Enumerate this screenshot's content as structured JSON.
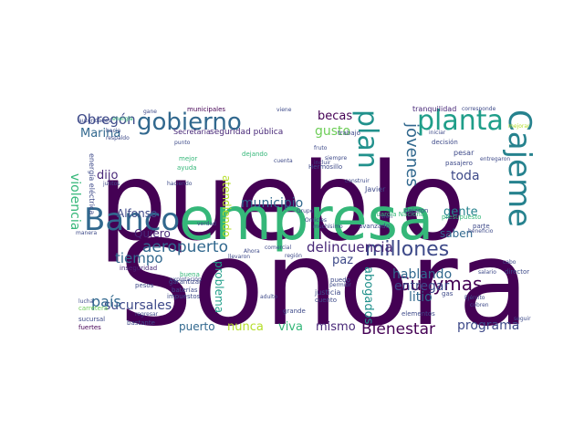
{
  "words": [
    {
      "text": "pueblo",
      "color": "#440154"
    },
    {
      "text": "Sonora",
      "color": "#440154"
    },
    {
      "text": "empresa",
      "color": "#35b779"
    },
    {
      "text": "gobierno",
      "color": "#31688e"
    },
    {
      "text": "Banco",
      "color": "#31688e"
    },
    {
      "text": "planta",
      "color": "#1f9e89"
    },
    {
      "text": "Cajeme",
      "color": "#26828e"
    },
    {
      "text": "plan",
      "color": "#21918c"
    },
    {
      "text": "millones",
      "color": "#3e4a89"
    },
    {
      "text": "delincuencia",
      "color": "#482878"
    },
    {
      "text": "aeropuerto",
      "color": "#31688e"
    },
    {
      "text": "Guaymas",
      "color": "#440154"
    },
    {
      "text": "jóvenes",
      "color": "#31688e"
    },
    {
      "text": "Obregón",
      "color": "#3e4a89"
    },
    {
      "text": "Bienestar",
      "color": "#440154"
    },
    {
      "text": "programa",
      "color": "#3e4a89"
    },
    {
      "text": "sucursales",
      "color": "#3e4a89"
    },
    {
      "text": "país",
      "color": "#31688e"
    },
    {
      "text": "litio",
      "color": "#31688e"
    },
    {
      "text": "entregar",
      "color": "#3e4a89"
    },
    {
      "text": "hablando",
      "color": "#31688e"
    },
    {
      "text": "tiempo",
      "color": "#31688e"
    },
    {
      "text": "municipio",
      "color": "#31688e"
    },
    {
      "text": "toda",
      "color": "#3e4a89"
    },
    {
      "text": "gente",
      "color": "#26828e"
    },
    {
      "text": "saben",
      "color": "#31688e"
    },
    {
      "text": "becas",
      "color": "#440154"
    },
    {
      "text": "gusto",
      "color": "#6ece58"
    },
    {
      "text": "Marina",
      "color": "#31688e"
    },
    {
      "text": "dijo",
      "color": "#482878"
    },
    {
      "text": "Alfonso",
      "color": "#3e4a89"
    },
    {
      "text": "Quiero",
      "color": "#482878"
    },
    {
      "text": "violencia",
      "color": "#35b779"
    },
    {
      "text": "abogados",
      "color": "#21918c"
    },
    {
      "text": "paz",
      "color": "#3e4a89"
    },
    {
      "text": "mismo",
      "color": "#482878"
    },
    {
      "text": "viva",
      "color": "#35b779"
    },
    {
      "text": "nunca",
      "color": "#b5de2b"
    },
    {
      "text": "puerto",
      "color": "#31688e"
    },
    {
      "text": "problema",
      "color": "#1f9e89"
    },
    {
      "text": "atendiendo",
      "color": "#b5de2b"
    },
    {
      "text": "seguridad pública",
      "color": "#482878"
    },
    {
      "text": "Secretaría",
      "color": "#482878"
    },
    {
      "text": "municipales",
      "color": "#440154"
    },
    {
      "text": "tranquilidad",
      "color": "#482878"
    },
    {
      "text": "Hermosillo",
      "color": "#3e4a89"
    },
    {
      "text": "trabajo",
      "color": "#3e4a89"
    },
    {
      "text": "Javier",
      "color": "#3e4a89"
    },
    {
      "text": "pesar",
      "color": "#3e4a89"
    },
    {
      "text": "pasajero",
      "color": "#3e4a89"
    },
    {
      "text": "avanzado",
      "color": "#3e4a89"
    },
    {
      "text": "dejaron",
      "color": "#3e4a89"
    },
    {
      "text": "inseguridad",
      "color": "#482878"
    },
    {
      "text": "pesos",
      "color": "#3e4a89"
    },
    {
      "text": "garantizar",
      "color": "#3e4a89"
    },
    {
      "text": "impuestos",
      "color": "#3e4a89"
    },
    {
      "text": "baterías",
      "color": "#3e4a89"
    },
    {
      "text": "justicia",
      "color": "#3e4a89"
    },
    {
      "text": "cuento",
      "color": "#3e4a89"
    },
    {
      "text": "puedo",
      "color": "#3e4a89"
    },
    {
      "text": "bastante",
      "color": "#3e4a89"
    },
    {
      "text": "fuertes",
      "color": "#440154"
    },
    {
      "text": "sucursal",
      "color": "#3e4a89"
    },
    {
      "text": "carretera",
      "color": "#6ece58"
    },
    {
      "text": "ayuda",
      "color": "#35b779"
    },
    {
      "text": "haciendo",
      "color": "#3e4a89"
    },
    {
      "text": "punto",
      "color": "#3e4a89"
    },
    {
      "text": "mejor",
      "color": "#35b779"
    },
    {
      "text": "juntos",
      "color": "#3e4a89"
    },
    {
      "text": "cuenta",
      "color": "#3e4a89"
    },
    {
      "text": "siempre",
      "color": "#3e4a89"
    },
    {
      "text": "dejando",
      "color": "#35b779"
    },
    {
      "text": "Ejército",
      "color": "#3e4a89"
    },
    {
      "text": "elementos",
      "color": "#3e4a89"
    },
    {
      "text": "gas",
      "color": "#3e4a89"
    },
    {
      "text": "salario",
      "color": "#3e4a89"
    },
    {
      "text": "director",
      "color": "#3e4a89"
    },
    {
      "text": "decisión",
      "color": "#3e4a89"
    },
    {
      "text": "iniciar",
      "color": "#3e4a89"
    },
    {
      "text": "parte",
      "color": "#3e4a89"
    },
    {
      "text": "beneficio",
      "color": "#3e4a89"
    },
    {
      "text": "grande",
      "color": "#3e4a89"
    },
    {
      "text": "permitir",
      "color": "#3e4a89"
    },
    {
      "text": "adulto",
      "color": "#3e4a89"
    },
    {
      "text": "regresar",
      "color": "#3e4a89"
    },
    {
      "text": "lucha",
      "color": "#3e4a89"
    },
    {
      "text": "manera",
      "color": "#3e4a89"
    },
    {
      "text": "verdad",
      "color": "#3e4a89"
    },
    {
      "text": "comercial",
      "color": "#3e4a89"
    },
    {
      "text": "construir",
      "color": "#3e4a89"
    },
    {
      "text": "región",
      "color": "#3e4a89"
    },
    {
      "text": "tren",
      "color": "#3e4a89"
    },
    {
      "text": "fruto",
      "color": "#3e4a89"
    },
    {
      "text": "incluir",
      "color": "#3e4a89"
    },
    {
      "text": "energía eléctrica",
      "color": "#3e4a89"
    },
    {
      "text": "energía",
      "color": "#35b779"
    },
    {
      "text": "respaldo",
      "color": "#3e4a89"
    },
    {
      "text": "hacia",
      "color": "#3e4a89"
    },
    {
      "text": "llevaron",
      "color": "#3e4a89"
    },
    {
      "text": "buena",
      "color": "#35b779"
    },
    {
      "text": "explotación",
      "color": "#3e4a89"
    },
    {
      "text": "Guardia Nacional",
      "color": "#35b779"
    },
    {
      "text": "Grupo",
      "color": "#3e4a89"
    },
    {
      "text": "presupuesto",
      "color": "#35b779"
    },
    {
      "text": "cabo",
      "color": "#3e4a89"
    },
    {
      "text": "entregaron",
      "color": "#3e4a89"
    },
    {
      "text": "cobren",
      "color": "#3e4a89"
    },
    {
      "text": "corresponde",
      "color": "#3e4a89"
    },
    {
      "text": "Ahora",
      "color": "#3e4a89"
    },
    {
      "text": "muchísimo",
      "color": "#3e4a89"
    },
    {
      "text": "Omicles",
      "color": "#3e4a89"
    },
    {
      "text": "autoridades",
      "color": "#3e4a89"
    },
    {
      "text": "gane",
      "color": "#3e4a89"
    },
    {
      "text": "viene",
      "color": "#3e4a89"
    },
    {
      "text": "seguir",
      "color": "#3e4a89"
    },
    {
      "text": "mejorar",
      "color": "#b5de2b"
    }
  ]
}
